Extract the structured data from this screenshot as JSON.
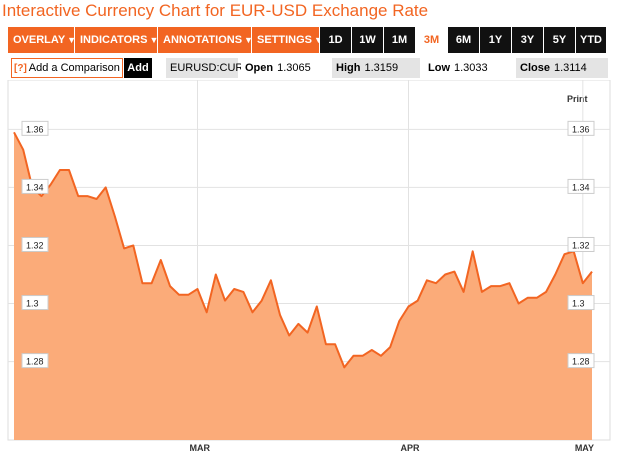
{
  "title": "Interactive Currency Chart for EUR-USD Exchange Rate",
  "toolbar": {
    "menus": [
      {
        "label": "OVERLAY",
        "caret": "▼"
      },
      {
        "label": "INDICATORS",
        "caret": "▼"
      },
      {
        "label": "ANNOTATIONS",
        "caret": "▼"
      },
      {
        "label": "SETTINGS",
        "caret": "▼"
      }
    ],
    "ranges": [
      "1D",
      "1W",
      "1M",
      "3M",
      "6M",
      "1Y",
      "3Y",
      "5Y",
      "YTD"
    ],
    "active_range": "3M"
  },
  "infobar": {
    "compare_icon": "[?]",
    "compare_placeholder": "Add a Comparison",
    "add_label": "Add",
    "symbol": "EURUSD:CUR",
    "open_label": "Open",
    "open_value": "1.3065",
    "high_label": "High",
    "high_value": "1.3159",
    "low_label": "Low",
    "low_value": "1.3033",
    "close_label": "Close",
    "close_value": "1.3114"
  },
  "print_label": "Print",
  "colors": {
    "accent": "#f26522",
    "area_fill": "#fbab79",
    "line": "#f26522",
    "tab_black": "#111111",
    "info_gray": "#e4e4e4"
  },
  "chart_data": {
    "type": "area",
    "series": [
      {
        "values": [
          1.359,
          1.353,
          1.34,
          1.337,
          1.341,
          1.346,
          1.346,
          1.337,
          1.337,
          1.336,
          1.34,
          1.33,
          1.319,
          1.32,
          1.307,
          1.307,
          1.315,
          1.306,
          1.303,
          1.303,
          1.305,
          1.297,
          1.31,
          1.301,
          1.305,
          1.304,
          1.297,
          1.301,
          1.308,
          1.296,
          1.289,
          1.293,
          1.29,
          1.299,
          1.286,
          1.286,
          1.278,
          1.282,
          1.282,
          1.284,
          1.282,
          1.285,
          1.294,
          1.299,
          1.301,
          1.308,
          1.307,
          1.31,
          1.311,
          1.304,
          1.318,
          1.304,
          1.306,
          1.306,
          1.307,
          1.3,
          1.302,
          1.302,
          1.304,
          1.31,
          1.317,
          1.318,
          1.307,
          1.311
        ]
      }
    ],
    "x_tick_labels": [
      {
        "label": "MAR",
        "index": 20
      },
      {
        "label": "APR",
        "index": 43
      },
      {
        "label": "MAY",
        "index": 62
      }
    ],
    "y_ticks": [
      1.36,
      1.34,
      1.32,
      1.3,
      1.28
    ],
    "y_tick_labels": [
      "1.36",
      "1.34",
      "1.32",
      "1.3",
      "1.28"
    ],
    "ylim": [
      1.253,
      1.377
    ],
    "grid": true
  }
}
